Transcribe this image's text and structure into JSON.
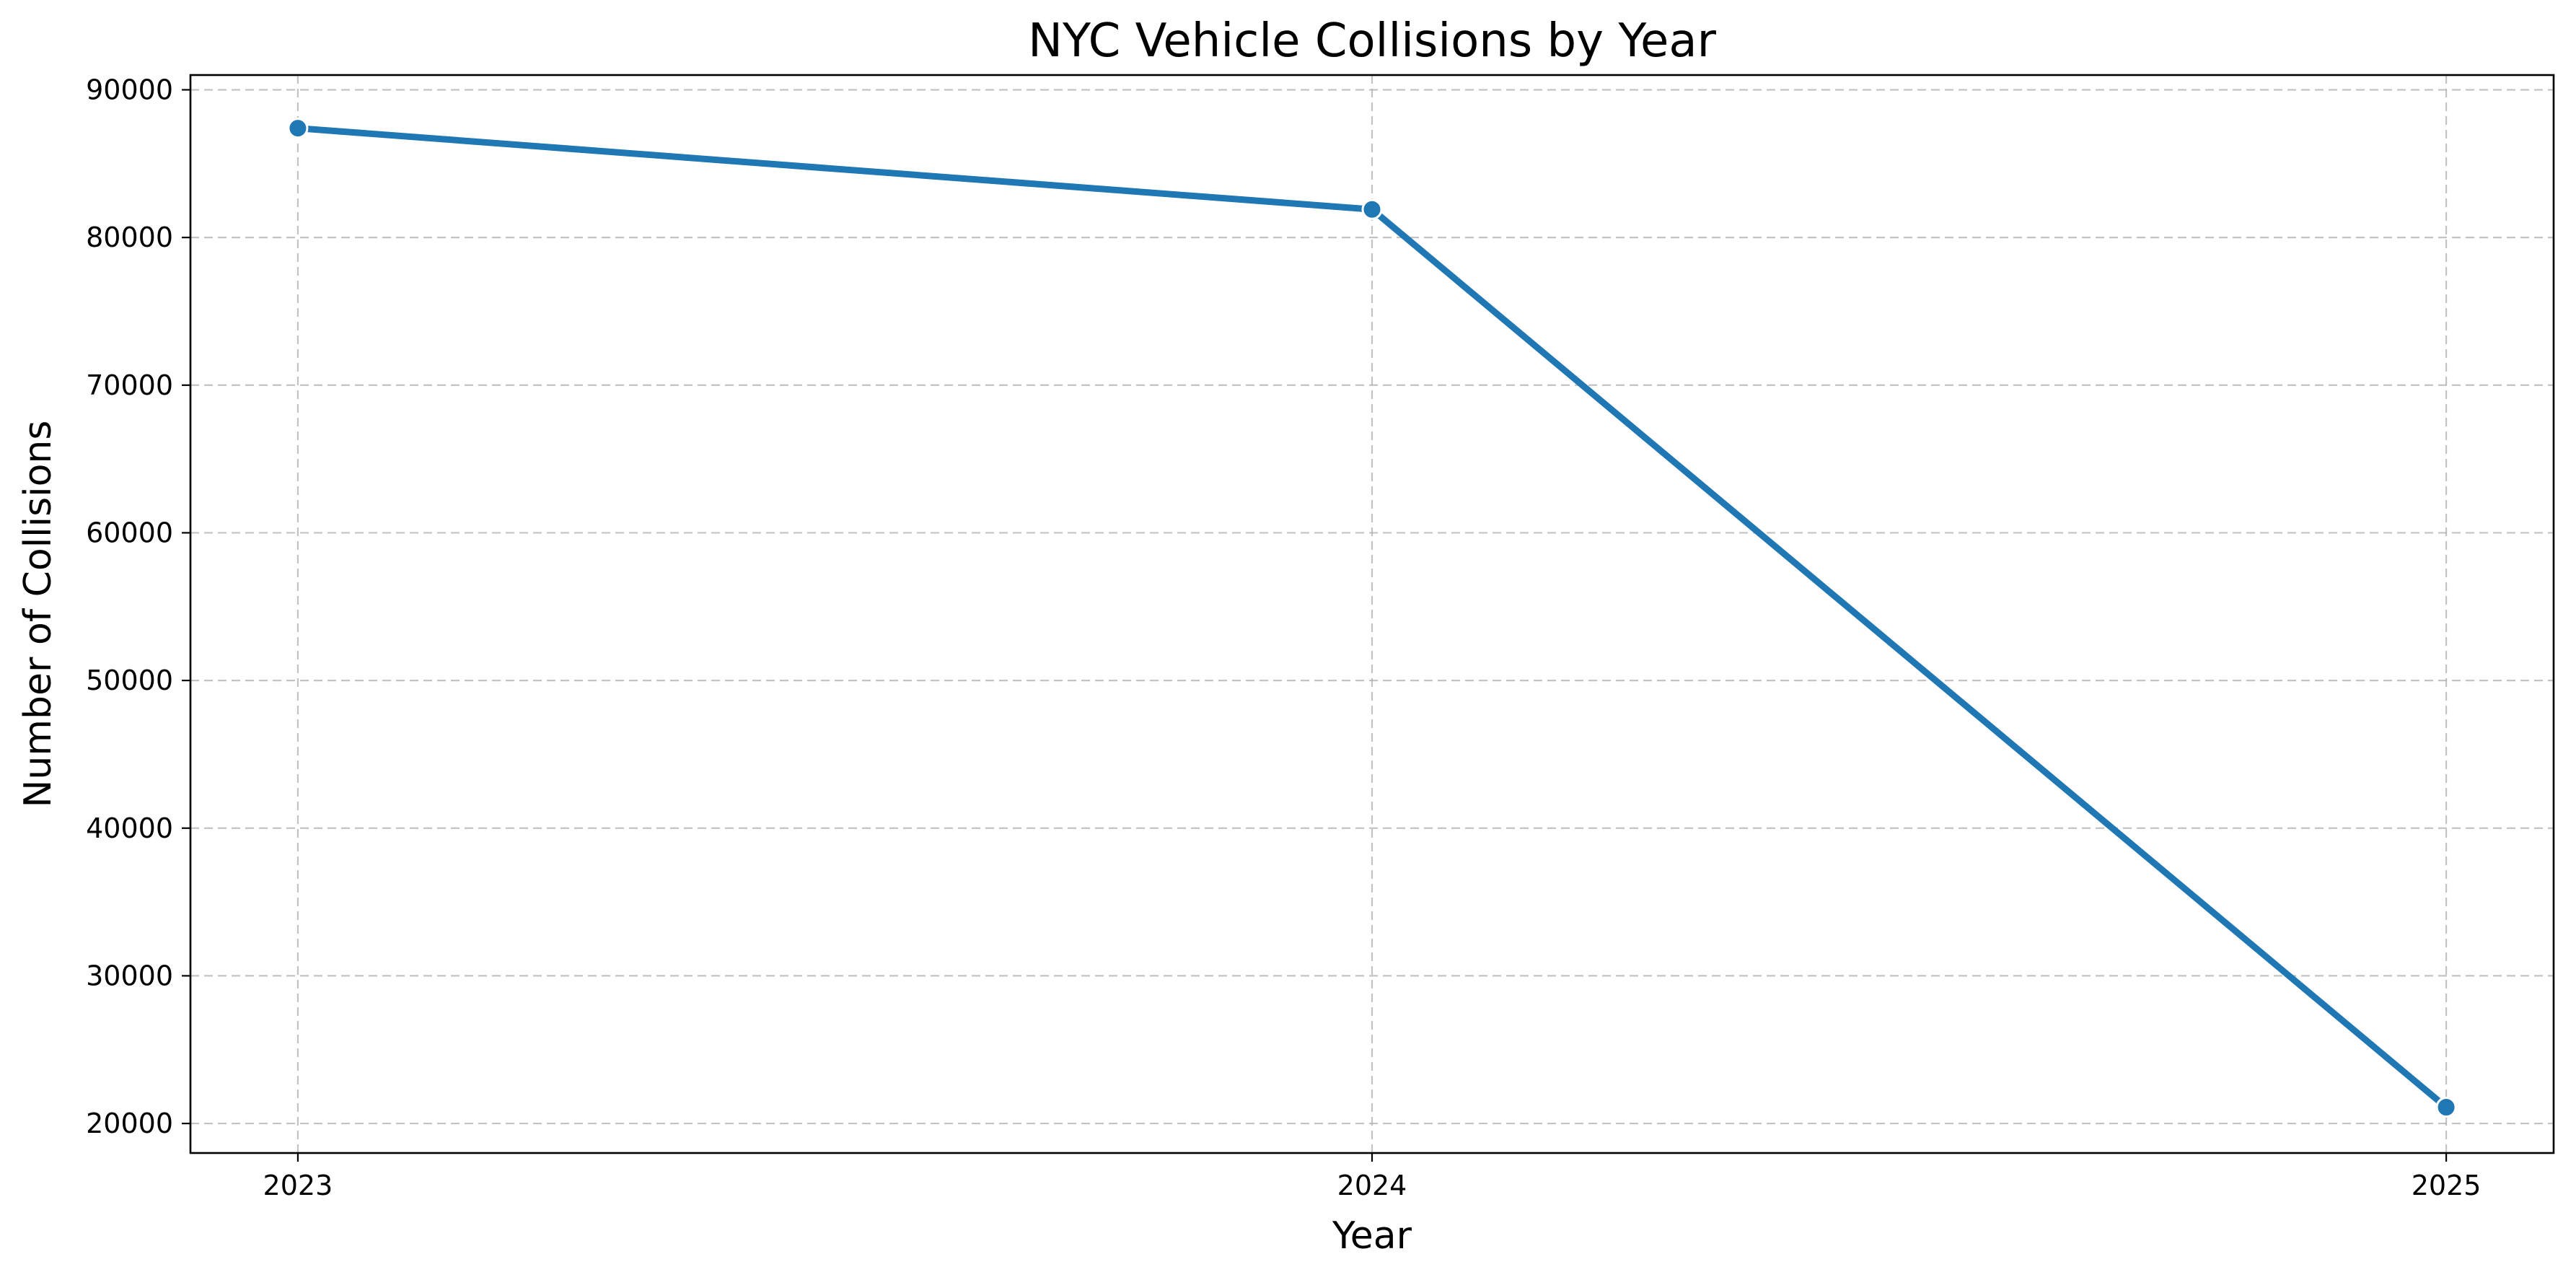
{
  "chart_data": {
    "type": "line",
    "title": "NYC Vehicle Collisions by Year",
    "xlabel": "Year",
    "ylabel": "Number of Collisions",
    "x": [
      2023,
      2024,
      2025
    ],
    "x_tick_labels": [
      "2023",
      "2024",
      "2025"
    ],
    "y_ticks": [
      20000,
      30000,
      40000,
      50000,
      60000,
      70000,
      80000,
      90000
    ],
    "y_tick_labels": [
      "20000",
      "30000",
      "40000",
      "50000",
      "60000",
      "70000",
      "80000",
      "90000"
    ],
    "xlim": [
      2022.9,
      2025.1
    ],
    "ylim": [
      18000,
      91000
    ],
    "grid": true,
    "series": [
      {
        "values": [
          87400,
          81900,
          21100
        ],
        "color": "#1f77b4",
        "marker": "circle"
      }
    ]
  }
}
